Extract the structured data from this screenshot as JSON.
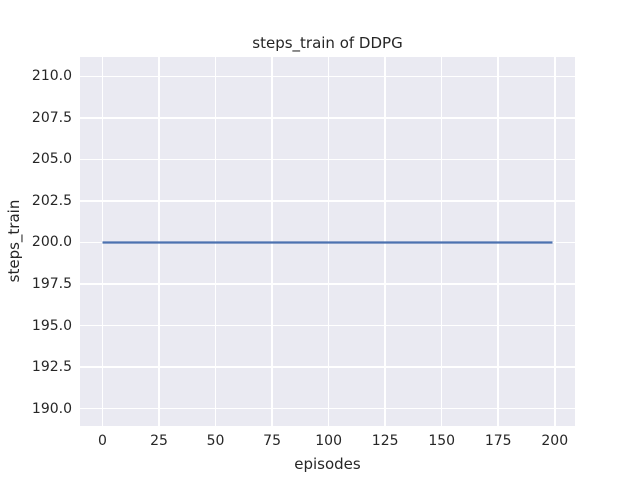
{
  "chart_data": {
    "type": "line",
    "title": "steps_train of DDPG",
    "xlabel": "episodes",
    "ylabel": "steps_train",
    "xlim": [
      -9.95,
      208.95
    ],
    "ylim": [
      188.95,
      211.17
    ],
    "xticks": [
      0,
      25,
      50,
      75,
      100,
      125,
      150,
      175,
      200
    ],
    "xtick_labels": [
      "0",
      "25",
      "50",
      "75",
      "100",
      "125",
      "150",
      "175",
      "200"
    ],
    "yticks": [
      190.0,
      192.5,
      195.0,
      197.5,
      200.0,
      202.5,
      205.0,
      207.5,
      210.0
    ],
    "ytick_labels": [
      "190.0",
      "192.5",
      "195.0",
      "197.5",
      "200.0",
      "202.5",
      "205.0",
      "207.5",
      "210.0"
    ],
    "grid": true,
    "legend": null,
    "series": [
      {
        "name": "steps_train",
        "color": "#4c72b0",
        "line_width": 2.2,
        "x": [
          0,
          199
        ],
        "y": [
          200,
          200
        ],
        "note": "constant value 200 across all episodes"
      }
    ],
    "colors": {
      "figure_background": "#ffffff",
      "axes_background": "#eaeaf2",
      "grid": "#ffffff",
      "text": "#262626"
    }
  }
}
